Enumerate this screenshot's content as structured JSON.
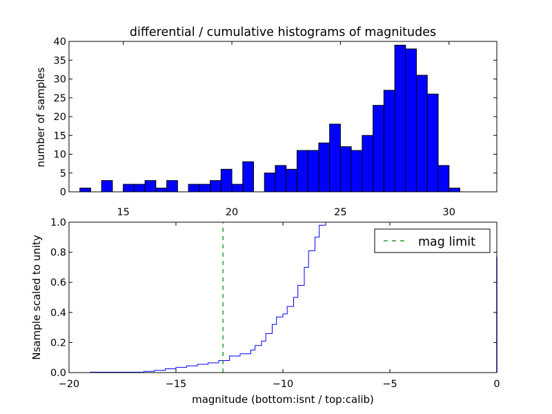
{
  "chart_data": [
    {
      "type": "bar",
      "title": "differential / cumulative histograms of magnitudes",
      "ylabel": "number of samples",
      "xlim": [
        12.5,
        32.2
      ],
      "ylim": [
        0,
        40
      ],
      "xticks": [
        15,
        20,
        25,
        30
      ],
      "yticks": [
        0,
        5,
        10,
        15,
        20,
        25,
        30,
        35,
        40
      ],
      "bar_color": "#0000ff",
      "bins": [
        {
          "x0": 13.0,
          "x1": 13.5,
          "count": 1
        },
        {
          "x0": 14.0,
          "x1": 14.5,
          "count": 3
        },
        {
          "x0": 15.0,
          "x1": 15.5,
          "count": 2
        },
        {
          "x0": 15.5,
          "x1": 16.0,
          "count": 2
        },
        {
          "x0": 16.0,
          "x1": 16.5,
          "count": 3
        },
        {
          "x0": 16.5,
          "x1": 17.0,
          "count": 1
        },
        {
          "x0": 17.0,
          "x1": 17.5,
          "count": 3
        },
        {
          "x0": 18.0,
          "x1": 18.5,
          "count": 2
        },
        {
          "x0": 18.5,
          "x1": 19.0,
          "count": 2
        },
        {
          "x0": 19.0,
          "x1": 19.5,
          "count": 3
        },
        {
          "x0": 19.5,
          "x1": 20.0,
          "count": 6
        },
        {
          "x0": 20.0,
          "x1": 20.5,
          "count": 2
        },
        {
          "x0": 20.5,
          "x1": 21.0,
          "count": 8
        },
        {
          "x0": 21.5,
          "x1": 22.0,
          "count": 5
        },
        {
          "x0": 22.0,
          "x1": 22.5,
          "count": 7
        },
        {
          "x0": 22.5,
          "x1": 23.0,
          "count": 6
        },
        {
          "x0": 23.0,
          "x1": 23.5,
          "count": 11
        },
        {
          "x0": 23.5,
          "x1": 24.0,
          "count": 11
        },
        {
          "x0": 24.0,
          "x1": 24.5,
          "count": 13
        },
        {
          "x0": 24.5,
          "x1": 25.0,
          "count": 18
        },
        {
          "x0": 25.0,
          "x1": 25.5,
          "count": 12
        },
        {
          "x0": 25.5,
          "x1": 26.0,
          "count": 11
        },
        {
          "x0": 26.0,
          "x1": 26.5,
          "count": 15
        },
        {
          "x0": 26.5,
          "x1": 27.0,
          "count": 23
        },
        {
          "x0": 27.0,
          "x1": 27.5,
          "count": 27
        },
        {
          "x0": 27.5,
          "x1": 28.0,
          "count": 39
        },
        {
          "x0": 28.0,
          "x1": 28.5,
          "count": 38
        },
        {
          "x0": 28.5,
          "x1": 29.0,
          "count": 31
        },
        {
          "x0": 29.0,
          "x1": 29.5,
          "count": 26
        },
        {
          "x0": 29.5,
          "x1": 30.0,
          "count": 7
        },
        {
          "x0": 30.0,
          "x1": 30.5,
          "count": 1
        }
      ]
    },
    {
      "type": "line",
      "xlabel": "magnitude (bottom:isnt / top:calib)",
      "ylabel": "Nsample scaled to unity",
      "xlim": [
        -20,
        0
      ],
      "ylim": [
        0,
        1
      ],
      "xticks": [
        -20,
        -15,
        -10,
        -5,
        0
      ],
      "xtick_labels": [
        "−20",
        "−15",
        "−10",
        "−5",
        "0"
      ],
      "yticks": [
        0.0,
        0.2,
        0.4,
        0.6,
        0.8,
        1.0
      ],
      "ytick_labels": [
        "0.0",
        "0.2",
        "0.4",
        "0.6",
        "0.8",
        "1.0"
      ],
      "legend_position": "top-right",
      "series": [
        {
          "style": "step",
          "color": "#0000ff",
          "x": [
            -20.0,
            -19.0,
            -16.5,
            -16.0,
            -15.5,
            -15.0,
            -14.5,
            -14.0,
            -13.5,
            -13.0,
            -12.5,
            -12.0,
            -11.5,
            -11.3,
            -11.0,
            -10.8,
            -10.5,
            -10.3,
            -10.0,
            -9.8,
            -9.5,
            -9.3,
            -9.0,
            -8.8,
            -8.5,
            -8.3,
            -8.0
          ],
          "y": [
            0.0,
            0.003,
            0.008,
            0.015,
            0.025,
            0.035,
            0.045,
            0.055,
            0.065,
            0.08,
            0.11,
            0.125,
            0.15,
            0.18,
            0.21,
            0.26,
            0.32,
            0.37,
            0.39,
            0.44,
            0.5,
            0.58,
            0.7,
            0.81,
            0.9,
            0.98,
            1.0
          ]
        },
        {
          "name": "mag limit",
          "style": "dashed",
          "color": "#008000",
          "x": [
            -12.8,
            -12.8
          ],
          "y": [
            0.0,
            1.0
          ]
        }
      ]
    }
  ]
}
